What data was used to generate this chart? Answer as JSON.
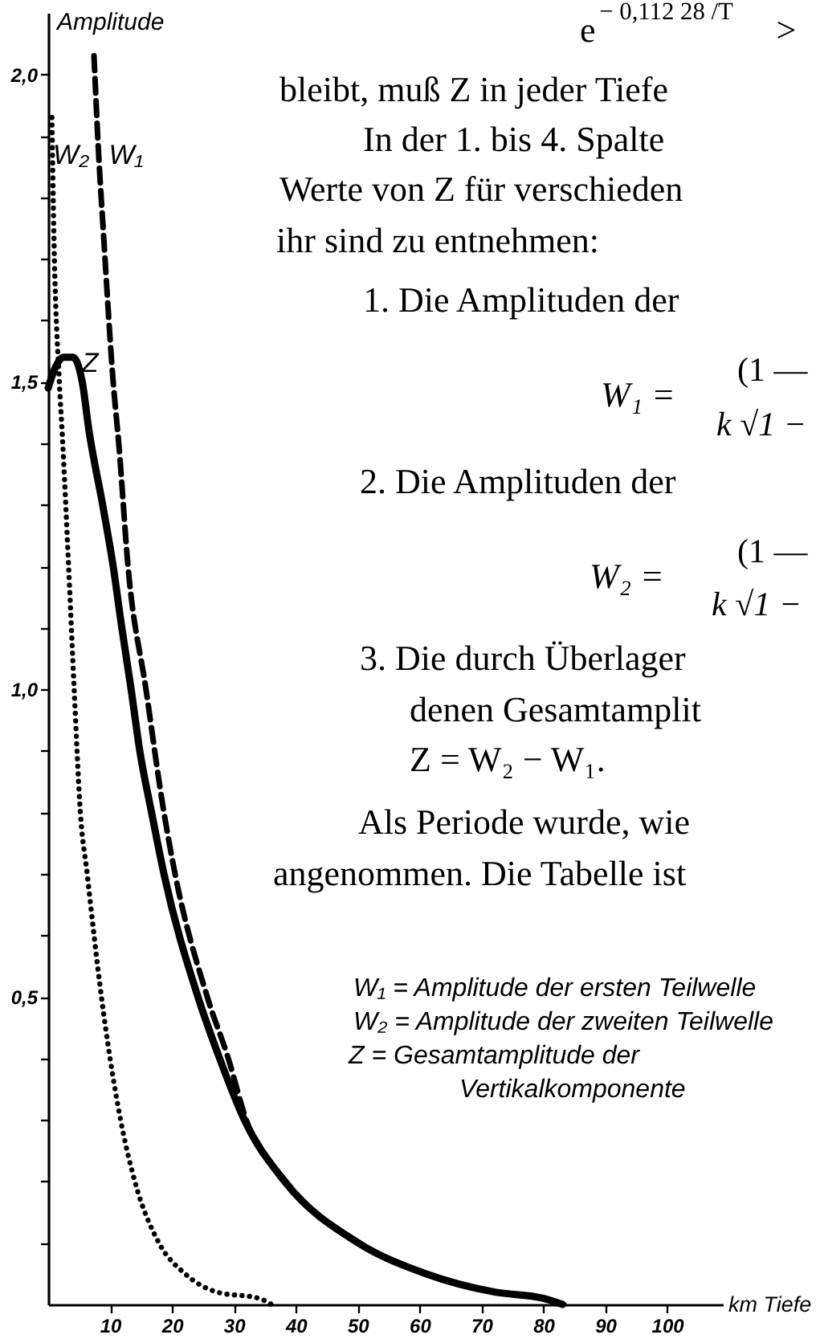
{
  "chart_data": {
    "type": "line",
    "xlabel": "km Tiefe",
    "ylabel": "Amplitude",
    "xlim": [
      0,
      109
    ],
    "ylim": [
      0,
      2.1
    ],
    "xticks": [
      10,
      20,
      30,
      40,
      50,
      60,
      70,
      80,
      90,
      100
    ],
    "yticks": [
      {
        "value": 0.1,
        "label": null
      },
      {
        "value": 0.2,
        "label": null
      },
      {
        "value": 0.3,
        "label": null
      },
      {
        "value": 0.4,
        "label": null
      },
      {
        "value": 0.5,
        "label": "0,5"
      },
      {
        "value": 0.6,
        "label": null
      },
      {
        "value": 0.7,
        "label": null
      },
      {
        "value": 0.8,
        "label": null
      },
      {
        "value": 0.9,
        "label": null
      },
      {
        "value": 1.0,
        "label": "1,0"
      },
      {
        "value": 1.1,
        "label": null
      },
      {
        "value": 1.2,
        "label": null
      },
      {
        "value": 1.3,
        "label": null
      },
      {
        "value": 1.4,
        "label": null
      },
      {
        "value": 1.5,
        "label": "1,5"
      },
      {
        "value": 1.6,
        "label": null
      },
      {
        "value": 1.7,
        "label": null
      },
      {
        "value": 1.8,
        "label": null
      },
      {
        "value": 1.9,
        "label": null
      },
      {
        "value": 2.0,
        "label": "2,0"
      }
    ],
    "series": [
      {
        "name": "W₂",
        "color": "#000000",
        "line_style": "dotted",
        "x": [
          0.6,
          0.9,
          1.8,
          2.3,
          3.3,
          4.2,
          5.2,
          6.3,
          8.6,
          10,
          11.7,
          14,
          17.9,
          22.1,
          27.3,
          34,
          36.1
        ],
        "values": [
          1.93,
          1.75,
          1.5,
          1.41,
          1.2,
          1.0,
          0.8,
          0.7,
          0.5,
          0.4,
          0.3,
          0.2,
          0.1,
          0.05,
          0.02,
          0.01,
          0
        ]
      },
      {
        "name": "Z",
        "color": "#000000",
        "line_style": "solid",
        "x": [
          0,
          1,
          2.5,
          4,
          5.5,
          6.6,
          8.8,
          10.5,
          11.9,
          13.4,
          14.8,
          16.7,
          18.7,
          24.2,
          27.7,
          31.7,
          38.2,
          50.1,
          61,
          72.2,
          80,
          83.1
        ],
        "values": [
          1.49,
          1.52,
          1.54,
          1.54,
          1.5,
          1.42,
          1.3,
          1.2,
          1.1,
          1.0,
          0.9,
          0.8,
          0.7,
          0.5,
          0.4,
          0.3,
          0.2,
          0.1,
          0.05,
          0.02,
          0.01,
          0
        ]
      },
      {
        "name": "W₁",
        "color": "#000000",
        "line_style": "dashed",
        "x": [
          7.4,
          8.1,
          9.0,
          10.5,
          11.4,
          12.9,
          15.8,
          18.7,
          20.5,
          25.7,
          29.1,
          32,
          38.4,
          50.3,
          61,
          72.2,
          80,
          83.3
        ],
        "values": [
          2.03,
          1.88,
          1.73,
          1.5,
          1.4,
          1.2,
          1.0,
          0.8,
          0.7,
          0.5,
          0.4,
          0.3,
          0.2,
          0.1,
          0.05,
          0.02,
          0.01,
          0
        ]
      }
    ],
    "annotations": [
      "e$^{− 0,112 28 /T}$ >",
      "bleibt, muß Z in jeder Tiefe",
      "In der 1. bis 4. Spalte",
      "Werte von Z für verschieden",
      "ihr sind zu entnehmen:",
      "1. Die Amplituden der",
      "W₁ =",
      "(1 —",
      "k √1 −",
      "2. Die Amplituden der",
      "W₂ =",
      "(1 —",
      "k √1 −",
      "3. Die durch Überlager",
      "denen Gesamtamplit",
      "Z = W₂ − W₁.",
      "Als Periode wurde, wie",
      "angenommen. Die Tabelle ist",
      "W₁ = Amplitude der ersten Teilwelle",
      "W₂ = Amplitude der zweiten Teilwelle",
      "Z = Gesamtamplitude der",
      "Vertikalkomponente"
    ]
  }
}
